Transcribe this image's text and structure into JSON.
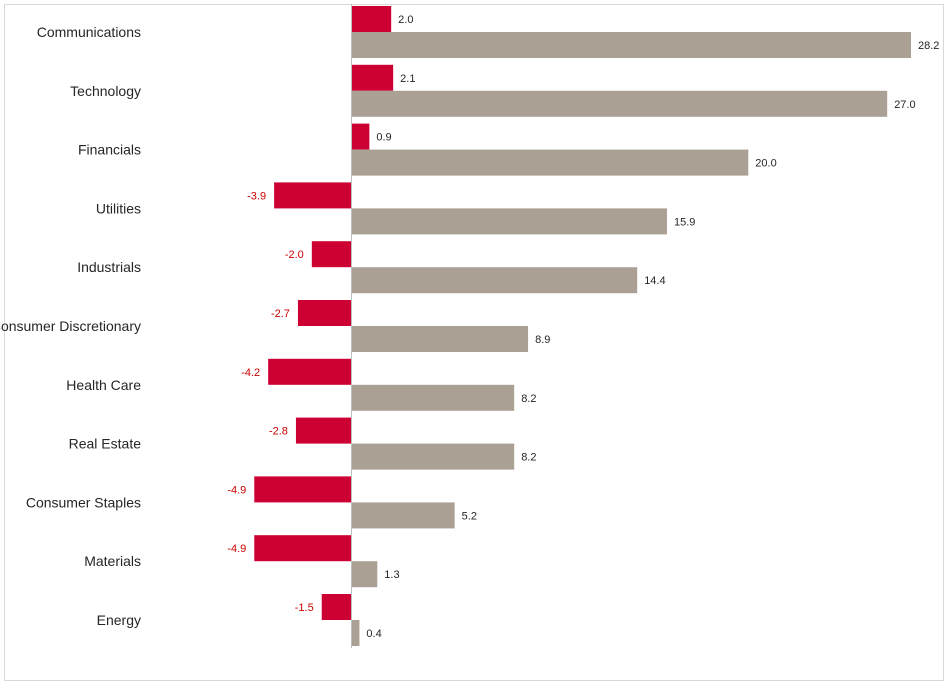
{
  "chart_data": {
    "type": "bar",
    "orientation": "horizontal",
    "categories": [
      "Communications",
      "Technology",
      "Financials",
      "Utilities",
      "Industrials",
      "Consumer Discretionary",
      "Health Care",
      "Real Estate",
      "Consumer Staples",
      "Materials",
      "Energy"
    ],
    "series": [
      {
        "values": [
          2.0,
          2.1,
          0.9,
          -3.9,
          -2.0,
          -2.7,
          -4.2,
          -2.8,
          -4.9,
          -4.9,
          -1.5
        ],
        "color": "#cc0033"
      },
      {
        "values": [
          28.2,
          27.0,
          20.0,
          15.9,
          14.4,
          8.9,
          8.2,
          8.2,
          5.2,
          1.3,
          0.4
        ],
        "color": "#aba094"
      }
    ],
    "xlim": [
      -17.6,
      30
    ],
    "grid": false,
    "legend": "none",
    "title": "",
    "xlabel": "",
    "ylabel": "",
    "label_colors": {
      "negative": "#cc0000",
      "positive": "#262626"
    }
  }
}
